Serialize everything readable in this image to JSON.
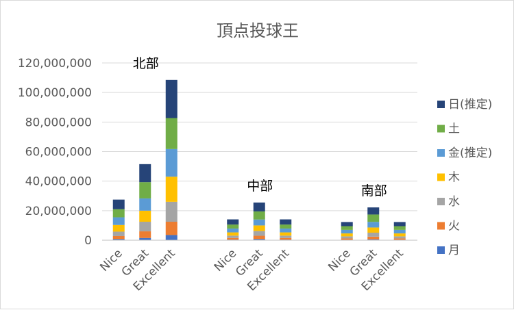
{
  "chart_data": {
    "type": "bar",
    "stacked": true,
    "title": "頂点投球王",
    "xlabel": "",
    "ylabel": "",
    "ylim": [
      0,
      120000000
    ],
    "yticks": [
      0,
      20000000,
      40000000,
      60000000,
      80000000,
      100000000,
      120000000
    ],
    "ytick_labels": [
      "0",
      "20,000,000",
      "40,000,000",
      "60,000,000",
      "80,000,000",
      "100,000,000",
      "120,000,000"
    ],
    "grid": true,
    "legend_position": "right",
    "groups": [
      {
        "label": "北部",
        "categories": [
          "Nice",
          "Great",
          "Excellent"
        ]
      },
      {
        "label": "中部",
        "categories": [
          "Nice",
          "Great",
          "Excellent"
        ]
      },
      {
        "label": "南部",
        "categories": [
          "Nice",
          "Great",
          "Excellent"
        ]
      }
    ],
    "series": [
      {
        "name": "月",
        "color": "#4472C4",
        "values": [
          800000,
          1500000,
          3500000,
          400000,
          800000,
          400000,
          300000,
          600000,
          300000
        ]
      },
      {
        "name": "火",
        "color": "#ED7D31",
        "values": [
          2000000,
          4500000,
          9000000,
          1100000,
          2200000,
          1100000,
          900000,
          1800000,
          900000
        ]
      },
      {
        "name": "水",
        "color": "#A5A5A5",
        "values": [
          3000000,
          6500000,
          13500000,
          1600000,
          3200000,
          1600000,
          1400000,
          2700000,
          1400000
        ]
      },
      {
        "name": "木",
        "color": "#FFC000",
        "values": [
          4500000,
          7500000,
          17000000,
          2200000,
          3800000,
          2200000,
          2000000,
          3500000,
          2000000
        ]
      },
      {
        "name": "金(推定)",
        "color": "#5B9BD5",
        "values": [
          5200000,
          8300000,
          18700000,
          2600000,
          4000000,
          2600000,
          2400000,
          3800000,
          2400000
        ]
      },
      {
        "name": "土",
        "color": "#70AD47",
        "values": [
          5500000,
          11000000,
          21000000,
          2700000,
          5500000,
          2700000,
          2500000,
          5000000,
          2500000
        ]
      },
      {
        "name": "日(推定)",
        "color": "#264478",
        "values": [
          6500000,
          12200000,
          25800000,
          3500000,
          6000000,
          3500000,
          2800000,
          4800000,
          2800000
        ]
      }
    ]
  }
}
